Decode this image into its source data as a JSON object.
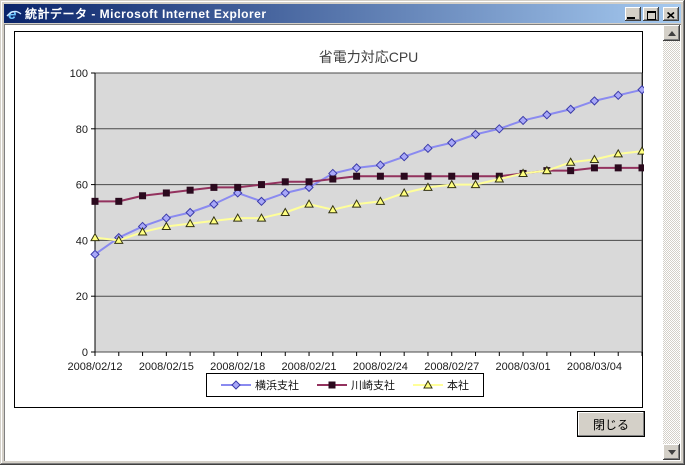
{
  "window": {
    "title": "統計データ - Microsoft Internet Explorer",
    "icon_glyph": "e",
    "titlebar_gradient": [
      "#0A246A",
      "#A6CAF0"
    ],
    "chrome_color": "#D4D0C8"
  },
  "chart_data": {
    "type": "line",
    "title": "省電力対応CPU",
    "x": [
      "2008/02/12",
      "2008/02/13",
      "2008/02/14",
      "2008/02/15",
      "2008/02/16",
      "2008/02/17",
      "2008/02/18",
      "2008/02/19",
      "2008/02/20",
      "2008/02/21",
      "2008/02/22",
      "2008/02/23",
      "2008/02/24",
      "2008/02/25",
      "2008/02/26",
      "2008/02/27",
      "2008/02/28",
      "2008/02/29",
      "2008/03/01",
      "2008/03/02",
      "2008/03/03",
      "2008/03/04",
      "2008/03/05",
      "2008/03/06"
    ],
    "x_tick_labels": [
      "2008/02/12",
      "2008/02/15",
      "2008/02/18",
      "2008/02/21",
      "2008/02/24",
      "2008/02/27",
      "2008/03/01",
      "2008/03/04"
    ],
    "x_label_every": 3,
    "ylim": [
      0,
      100
    ],
    "yticks": [
      0,
      20,
      40,
      60,
      80,
      100
    ],
    "grid": true,
    "plot_bg": "#D9D9D9",
    "grid_color": "#4A4A4A",
    "legend_position": "bottom",
    "series": [
      {
        "id": "yokohama",
        "name": "横浜支社",
        "marker": "diamond",
        "color": "#8A8AF0",
        "marker_fill": "#A8A8F8",
        "marker_stroke": "#3A3AA8",
        "values": [
          35,
          41,
          45,
          48,
          50,
          53,
          57,
          54,
          57,
          59,
          64,
          66,
          67,
          70,
          73,
          75,
          78,
          80,
          83,
          85,
          87,
          90,
          92,
          94
        ]
      },
      {
        "id": "kawasaki",
        "name": "川崎支社",
        "marker": "square",
        "color": "#93325E",
        "marker_fill": "#2B0A1E",
        "marker_stroke": "#2B0A1E",
        "values": [
          54,
          54,
          56,
          57,
          58,
          59,
          59,
          60,
          61,
          61,
          62,
          63,
          63,
          63,
          63,
          63,
          63,
          63,
          64,
          65,
          65,
          66,
          66,
          66
        ]
      },
      {
        "id": "honsha",
        "name": "本社",
        "marker": "triangle",
        "color": "#FFFF99",
        "marker_fill": "#FFFF80",
        "marker_stroke": "#333311",
        "values": [
          41,
          40,
          43,
          45,
          46,
          47,
          48,
          48,
          50,
          53,
          51,
          53,
          54,
          57,
          59,
          60,
          60,
          62,
          64,
          65,
          68,
          69,
          71,
          72
        ]
      }
    ]
  },
  "buttons": {
    "close_label": "閉じる"
  },
  "scrollbar": {
    "orientation": "vertical"
  }
}
